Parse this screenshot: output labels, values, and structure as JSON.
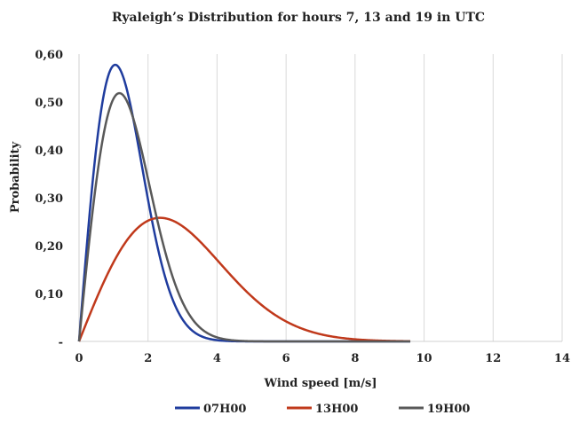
{
  "chart_data": {
    "type": "line",
    "title": "Ryaleigh’s Distribution for hours 7, 13 and 19 in UTC",
    "xlabel": "Wind speed [m/s]",
    "ylabel": "Probability",
    "xlim": [
      0,
      14
    ],
    "ylim": [
      0,
      0.6
    ],
    "x_ticks": [
      "0",
      "2",
      "4",
      "6",
      "8",
      "10",
      "12",
      "14"
    ],
    "y_ticks": [
      "-",
      "0,10",
      "0,20",
      "0,30",
      "0,40",
      "0,50",
      "0,60"
    ],
    "grid": {
      "vertical": true,
      "horizontal": false
    },
    "legend_position": "bottom",
    "series": [
      {
        "name": "07H00",
        "color": "#1f3c9e",
        "sigma": 1.05
      },
      {
        "name": "13H00",
        "color": "#c0391b",
        "sigma": 2.35
      },
      {
        "name": "19H00",
        "color": "#595959",
        "sigma": 1.17
      }
    ]
  }
}
